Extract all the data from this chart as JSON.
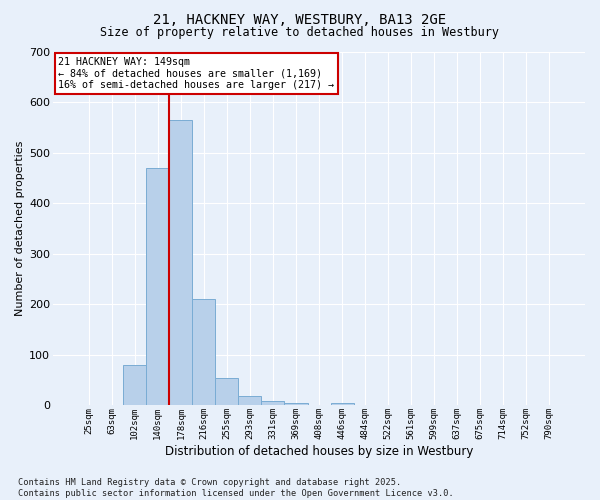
{
  "title": "21, HACKNEY WAY, WESTBURY, BA13 2GE",
  "subtitle": "Size of property relative to detached houses in Westbury",
  "xlabel": "Distribution of detached houses by size in Westbury",
  "ylabel": "Number of detached properties",
  "categories": [
    "25sqm",
    "63sqm",
    "102sqm",
    "140sqm",
    "178sqm",
    "216sqm",
    "255sqm",
    "293sqm",
    "331sqm",
    "369sqm",
    "408sqm",
    "446sqm",
    "484sqm",
    "522sqm",
    "561sqm",
    "599sqm",
    "637sqm",
    "675sqm",
    "714sqm",
    "752sqm",
    "790sqm"
  ],
  "values": [
    0,
    0,
    80,
    470,
    565,
    210,
    55,
    18,
    8,
    5,
    0,
    5,
    0,
    0,
    0,
    0,
    0,
    0,
    0,
    0,
    0
  ],
  "bar_color": "#b8d0ea",
  "bar_edge_color": "#7aacd4",
  "background_color": "#e8f0fa",
  "grid_color": "#ffffff",
  "annotation_text": "21 HACKNEY WAY: 149sqm\n← 84% of detached houses are smaller (1,169)\n16% of semi-detached houses are larger (217) →",
  "annotation_box_color": "#ffffff",
  "annotation_border_color": "#cc0000",
  "footnote": "Contains HM Land Registry data © Crown copyright and database right 2025.\nContains public sector information licensed under the Open Government Licence v3.0.",
  "ylim": [
    0,
    700
  ],
  "yticks": [
    0,
    100,
    200,
    300,
    400,
    500,
    600,
    700
  ],
  "title_fontsize": 10,
  "subtitle_fontsize": 8.5,
  "red_line_index": 3.5
}
